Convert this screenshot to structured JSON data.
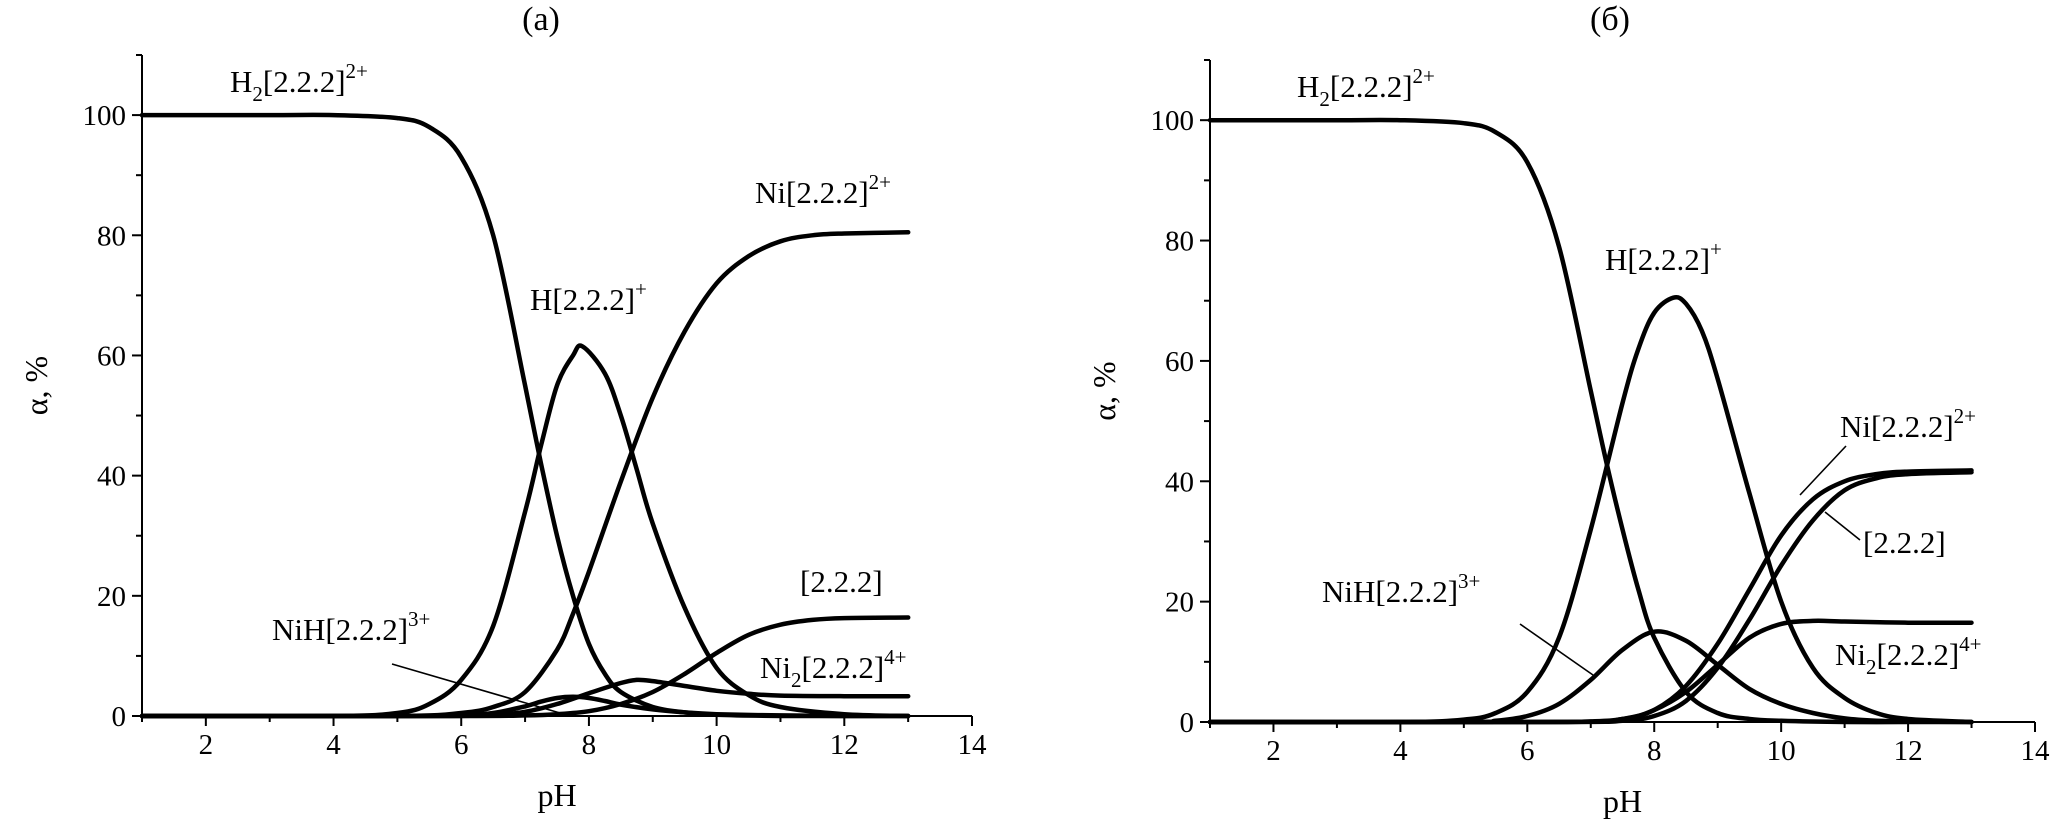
{
  "chart_data": [
    {
      "type": "line",
      "title": "(а)",
      "xlabel": "pH",
      "ylabel": "α, %",
      "xlim": [
        1,
        14
      ],
      "ylim": [
        0,
        110
      ],
      "xticks": [
        2,
        4,
        6,
        8,
        10,
        12,
        14
      ],
      "yticks": [
        0,
        20,
        40,
        60,
        80,
        100
      ],
      "grid": false,
      "series": [
        {
          "name": "H2[2.2.2]2+",
          "label": {
            "main": "H",
            "sub1": "2",
            "mid": "[2.2.2]",
            "sup": "2+",
            "tail": ""
          },
          "x": [
            1,
            3,
            4,
            5,
            5.5,
            6,
            6.5,
            7,
            7.25,
            7.5,
            7.75,
            8,
            8.25,
            8.5,
            9,
            9.5,
            10,
            11,
            12,
            13
          ],
          "y": [
            100,
            100,
            100,
            99.5,
            98,
            93,
            80,
            55,
            42,
            30,
            20,
            12,
            7,
            4,
            1.5,
            0.6,
            0.2,
            0,
            0,
            0
          ]
        },
        {
          "name": "H[2.2.2]+",
          "label": {
            "main": "H",
            "sub1": "",
            "mid": "[2.2.2]",
            "sup": "+",
            "tail": ""
          },
          "x": [
            1,
            4,
            5,
            5.5,
            6,
            6.5,
            7,
            7.25,
            7.5,
            7.75,
            7.9,
            8.25,
            8.5,
            8.75,
            9,
            9.5,
            10,
            10.5,
            11,
            12,
            13
          ],
          "y": [
            0,
            0,
            0.5,
            2,
            6,
            15,
            34,
            45,
            55,
            60,
            61.5,
            57,
            50,
            41,
            32,
            18,
            8,
            3.5,
            1.5,
            0.3,
            0
          ]
        },
        {
          "name": "Ni[2.2.2]2+",
          "label": {
            "main": "Ni",
            "sub1": "",
            "mid": "[2.2.2]",
            "sup": "2+",
            "tail": ""
          },
          "x": [
            1,
            5,
            6,
            6.5,
            7,
            7.5,
            7.75,
            8,
            8.5,
            9,
            9.5,
            10,
            10.5,
            11,
            11.5,
            12,
            13
          ],
          "y": [
            0,
            0,
            0.5,
            1.5,
            4,
            11,
            17,
            24,
            39,
            53,
            64,
            72,
            76.5,
            79,
            80,
            80.3,
            80.5
          ]
        },
        {
          "name": "[2.2.2]",
          "label": {
            "main": "",
            "sub1": "",
            "mid": "[2.2.2]",
            "sup": "",
            "tail": ""
          },
          "x": [
            1,
            6,
            7,
            7.5,
            8,
            8.5,
            9,
            9.5,
            10,
            10.5,
            11,
            11.5,
            12,
            13
          ],
          "y": [
            0,
            0,
            0.1,
            0.3,
            0.8,
            2,
            4,
            7,
            10.5,
            13.5,
            15.2,
            16,
            16.3,
            16.4
          ]
        },
        {
          "name": "NiH[2.2.2]3+",
          "label": {
            "main": "NiH",
            "sub1": "",
            "mid": "[2.2.2]",
            "sup": "3+",
            "tail": ""
          },
          "x": [
            1,
            5,
            6,
            6.5,
            7,
            7.25,
            7.5,
            7.75,
            8,
            8.25,
            8.5,
            9,
            9.5,
            10,
            11,
            12,
            13
          ],
          "y": [
            0,
            0,
            0.1,
            0.5,
            1.6,
            2.4,
            3,
            3.2,
            3,
            2.5,
            1.9,
            1.1,
            0.6,
            0.3,
            0.1,
            0,
            0
          ]
        },
        {
          "name": "Ni2[2.2.2]4+",
          "label": {
            "main": "Ni",
            "sub1": "2",
            "mid": "[2.2.2]",
            "sup": "4+",
            "tail": ""
          },
          "x": [
            1,
            5.5,
            6.5,
            7,
            7.5,
            8,
            8.5,
            8.75,
            9,
            9.5,
            10,
            10.5,
            11,
            12,
            13
          ],
          "y": [
            0,
            0,
            0.2,
            0.7,
            2,
            3.8,
            5.5,
            6,
            5.8,
            5,
            4.2,
            3.7,
            3.4,
            3.3,
            3.3
          ]
        }
      ]
    },
    {
      "type": "line",
      "title": "(б)",
      "xlabel": "pH",
      "ylabel": "α, %",
      "xlim": [
        1,
        14
      ],
      "ylim": [
        0,
        110
      ],
      "xticks": [
        2,
        4,
        6,
        8,
        10,
        12,
        14
      ],
      "yticks": [
        0,
        20,
        40,
        60,
        80,
        100
      ],
      "grid": false,
      "series": [
        {
          "name": "H2[2.2.2]2+",
          "label": {
            "main": "H",
            "sub1": "2",
            "mid": "[2.2.2]",
            "sup": "2+",
            "tail": ""
          },
          "x": [
            1,
            3,
            4,
            5,
            5.5,
            6,
            6.5,
            7,
            7.25,
            7.5,
            7.75,
            8,
            8.5,
            9,
            9.5,
            10,
            11,
            12,
            13
          ],
          "y": [
            100,
            100,
            100,
            99.5,
            98,
            93,
            79,
            55,
            43,
            32,
            22,
            14,
            5,
            1.5,
            0.5,
            0.2,
            0,
            0,
            0
          ]
        },
        {
          "name": "H[2.2.2]+",
          "label": {
            "main": "H",
            "sub1": "",
            "mid": "[2.2.2]",
            "sup": "+",
            "tail": ""
          },
          "x": [
            1,
            4,
            5,
            5.5,
            6,
            6.5,
            7,
            7.5,
            7.75,
            8,
            8.3,
            8.5,
            8.75,
            9,
            9.5,
            10,
            10.5,
            11,
            11.5,
            12,
            13
          ],
          "y": [
            0,
            0,
            0.4,
            1.5,
            5,
            14,
            32,
            53,
            62,
            68,
            70.5,
            69.5,
            65,
            57,
            38,
            20,
            9,
            4,
            1.5,
            0.5,
            0
          ]
        },
        {
          "name": "NiH[2.2.2]3+",
          "label": {
            "main": "NiH",
            "sub1": "",
            "mid": "[2.2.2]",
            "sup": "3+",
            "tail": ""
          },
          "x": [
            1,
            5,
            5.5,
            6,
            6.5,
            7,
            7.5,
            8,
            8.5,
            9,
            9.5,
            10,
            10.5,
            11,
            11.5,
            12,
            13
          ],
          "y": [
            0,
            0,
            0.2,
            1,
            3,
            7,
            12,
            15,
            13.5,
            9.5,
            5.5,
            3,
            1.5,
            0.6,
            0.2,
            0.1,
            0
          ]
        },
        {
          "name": "Ni[2.2.2]2+",
          "label": {
            "main": "Ni",
            "sub1": "",
            "mid": "[2.2.2]",
            "sup": "2+",
            "tail": ""
          },
          "x": [
            1,
            6,
            7,
            7.5,
            8,
            8.5,
            9,
            9.5,
            10,
            10.5,
            11,
            11.5,
            12,
            13
          ],
          "y": [
            0,
            0,
            0.1,
            0.5,
            2,
            6,
            13,
            22,
            31,
            37,
            40,
            41.2,
            41.6,
            41.8
          ]
        },
        {
          "name": "[2.2.2]",
          "label": {
            "main": "",
            "sub1": "",
            "mid": "[2.2.2]",
            "sup": "",
            "tail": ""
          },
          "x": [
            1,
            6.5,
            7.5,
            8,
            8.5,
            9,
            9.5,
            10,
            10.5,
            11,
            11.5,
            12,
            13
          ],
          "y": [
            0,
            0,
            0.2,
            1,
            3.5,
            9,
            17,
            26,
            33.5,
            38.5,
            40.5,
            41.2,
            41.5
          ]
        },
        {
          "name": "Ni2[2.2.2]4+",
          "label": {
            "main": "Ni",
            "sub1": "2",
            "mid": "[2.2.2]",
            "sup": "4+",
            "tail": ""
          },
          "x": [
            1,
            6.5,
            7.5,
            8,
            8.5,
            9,
            9.5,
            10,
            10.5,
            11,
            12,
            13
          ],
          "y": [
            0,
            0,
            0.5,
            2,
            5,
            9.5,
            14,
            16.3,
            16.8,
            16.7,
            16.5,
            16.5
          ]
        }
      ]
    }
  ]
}
